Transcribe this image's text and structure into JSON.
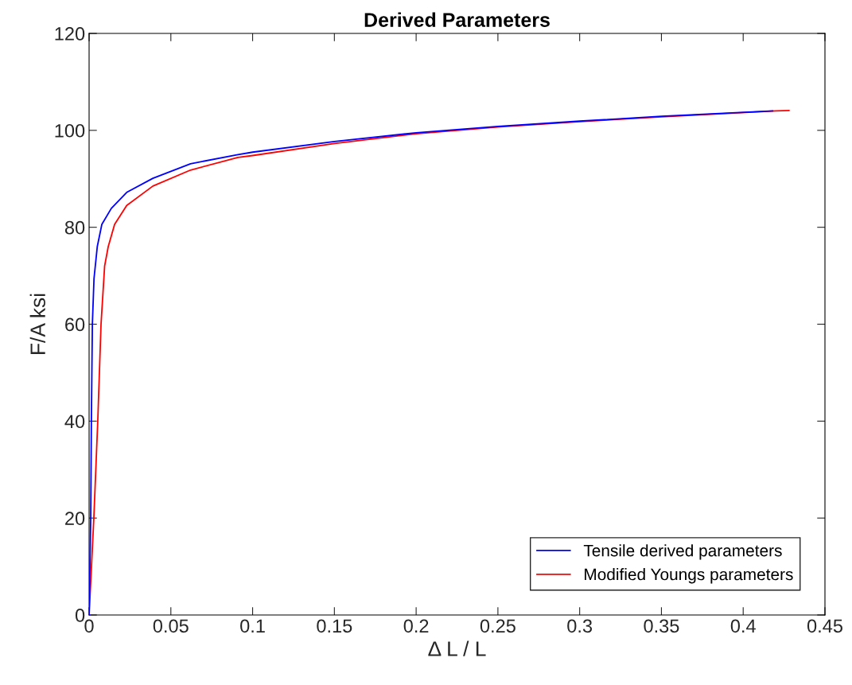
{
  "chart_data": {
    "type": "line",
    "title": "Derived Parameters",
    "xlabel": "Δ L / L",
    "ylabel": "F/A ksi",
    "xlim": [
      0,
      0.45
    ],
    "ylim": [
      0,
      120
    ],
    "xticks": [
      0,
      0.05,
      0.1,
      0.15,
      0.2,
      0.25,
      0.3,
      0.35,
      0.4,
      0.45
    ],
    "yticks": [
      0,
      20,
      40,
      60,
      80,
      100,
      120
    ],
    "grid": false,
    "legend": "bottom right",
    "marker": "none",
    "line_style": "solid",
    "series": [
      {
        "name": "Tensile derived parameters",
        "color": "#0000ff",
        "x": [
          0,
          0.001,
          0.0014,
          0.002,
          0.003,
          0.005,
          0.0078,
          0.0136,
          0.023,
          0.039,
          0.062,
          0.091,
          0.1,
          0.15,
          0.2,
          0.25,
          0.3,
          0.35,
          0.418
        ],
        "values": [
          0,
          20,
          40,
          60,
          69.4,
          76,
          80.6,
          83.9,
          87.2,
          90.1,
          93.1,
          95,
          95.5,
          97.7,
          99.5,
          100.8,
          101.9,
          102.9,
          104
        ]
      },
      {
        "name": "Modified Youngs parameters",
        "color": "#ff0000",
        "x": [
          0,
          0.0029,
          0.0053,
          0.0073,
          0.0095,
          0.0117,
          0.0156,
          0.023,
          0.039,
          0.062,
          0.091,
          0.1,
          0.15,
          0.2,
          0.25,
          0.3,
          0.35,
          0.42,
          0.428
        ],
        "values": [
          0,
          20,
          40,
          60,
          72,
          76,
          80.6,
          84.5,
          88.5,
          91.8,
          94.4,
          94.8,
          97.3,
          99.3,
          100.7,
          101.8,
          102.8,
          104,
          104.1
        ]
      }
    ]
  }
}
